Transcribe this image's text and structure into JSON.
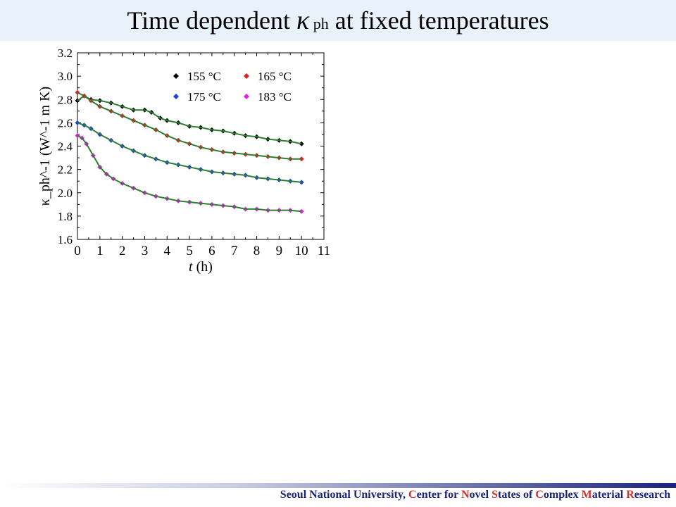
{
  "header": {
    "title_prefix": "Time dependent ",
    "title_kappa": "κ",
    "title_sub": " ph",
    "title_suffix": " at fixed temperatures"
  },
  "footer": {
    "parts": [
      {
        "text": "Seoul National University, ",
        "hl": false
      },
      {
        "text": "C",
        "hl": true
      },
      {
        "text": "enter for ",
        "hl": false
      },
      {
        "text": "N",
        "hl": true
      },
      {
        "text": "ovel ",
        "hl": false
      },
      {
        "text": "S",
        "hl": true
      },
      {
        "text": "tates of ",
        "hl": false
      },
      {
        "text": "C",
        "hl": true
      },
      {
        "text": "omplex ",
        "hl": false
      },
      {
        "text": "M",
        "hl": true
      },
      {
        "text": "aterial ",
        "hl": false
      },
      {
        "text": "R",
        "hl": true
      },
      {
        "text": "esearch",
        "hl": false
      }
    ]
  },
  "chart_data": {
    "type": "scatter",
    "xlabel_var": "t",
    "xlabel_unit": "(h)",
    "ylabel": "κ_ph^-1 (W^-1 m K)",
    "xlim": [
      0,
      11
    ],
    "ylim": [
      1.6,
      3.2
    ],
    "xticks": [
      "0",
      "1",
      "2",
      "3",
      "4",
      "5",
      "6",
      "7",
      "8",
      "9",
      "10",
      "11"
    ],
    "yticks": [
      "1.6",
      "1.8",
      "2.0",
      "2.2",
      "2.4",
      "2.6",
      "2.8",
      "3.0",
      "3.2"
    ],
    "legend_position": "top-right",
    "fit_color": "#2e7d32",
    "series": [
      {
        "name": "155 °C",
        "color": "#000000",
        "x": [
          0,
          0.3,
          0.6,
          1,
          1.5,
          2,
          2.5,
          3,
          3.3,
          3.7,
          4,
          4.5,
          5,
          5.5,
          6,
          6.5,
          7,
          7.5,
          8,
          8.5,
          9,
          9.5,
          10
        ],
        "y": [
          2.79,
          2.83,
          2.8,
          2.79,
          2.77,
          2.74,
          2.71,
          2.71,
          2.69,
          2.64,
          2.62,
          2.6,
          2.57,
          2.56,
          2.54,
          2.53,
          2.51,
          2.49,
          2.48,
          2.46,
          2.45,
          2.44,
          2.42
        ]
      },
      {
        "name": "165 °C",
        "color": "#e02020",
        "x": [
          0,
          0.3,
          0.6,
          1,
          1.5,
          2,
          2.5,
          3,
          3.5,
          4,
          4.5,
          5,
          5.5,
          6,
          6.5,
          7,
          7.5,
          8,
          8.5,
          9,
          9.5,
          10
        ],
        "y": [
          2.86,
          2.83,
          2.79,
          2.74,
          2.7,
          2.66,
          2.62,
          2.58,
          2.54,
          2.49,
          2.45,
          2.42,
          2.39,
          2.37,
          2.35,
          2.34,
          2.33,
          2.32,
          2.31,
          2.3,
          2.29,
          2.29
        ]
      },
      {
        "name": "175 °C",
        "color": "#1f3fe0",
        "x": [
          0,
          0.3,
          0.6,
          1,
          1.5,
          2,
          2.5,
          3,
          3.5,
          4,
          4.5,
          5,
          5.5,
          6,
          6.5,
          7,
          7.5,
          8,
          8.5,
          9,
          9.5,
          10
        ],
        "y": [
          2.6,
          2.58,
          2.55,
          2.5,
          2.45,
          2.4,
          2.36,
          2.32,
          2.29,
          2.26,
          2.24,
          2.22,
          2.2,
          2.18,
          2.17,
          2.16,
          2.15,
          2.13,
          2.12,
          2.11,
          2.1,
          2.09
        ]
      },
      {
        "name": "183 °C",
        "color": "#e020e0",
        "x": [
          0,
          0.2,
          0.4,
          0.7,
          1,
          1.3,
          1.6,
          2,
          2.5,
          3,
          3.5,
          4,
          4.5,
          5,
          5.5,
          6,
          6.5,
          7,
          7.5,
          8,
          8.5,
          9,
          9.5,
          10
        ],
        "y": [
          2.49,
          2.47,
          2.42,
          2.32,
          2.22,
          2.16,
          2.12,
          2.08,
          2.04,
          2.0,
          1.97,
          1.95,
          1.93,
          1.92,
          1.91,
          1.9,
          1.89,
          1.88,
          1.86,
          1.86,
          1.85,
          1.85,
          1.85,
          1.84
        ]
      }
    ]
  }
}
